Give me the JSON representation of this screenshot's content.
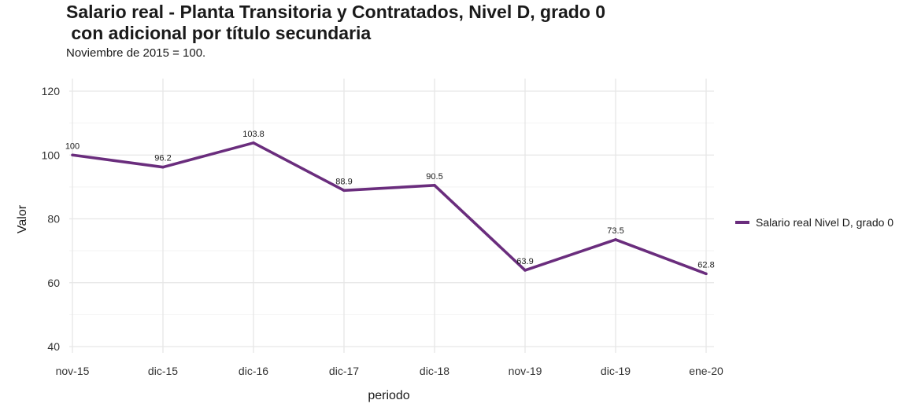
{
  "title": "Salario real - Planta Transitoria y Contratados, Nivel D, grado 0\n con adicional por título secundaria",
  "subtitle": "Noviembre de 2015 = 100.",
  "chart_data": {
    "type": "line",
    "categories": [
      "nov-15",
      "dic-15",
      "dic-16",
      "dic-17",
      "dic-18",
      "nov-19",
      "dic-19",
      "ene-20"
    ],
    "series": [
      {
        "name": "Salario real Nivel D, grado 0",
        "values": [
          100,
          96.2,
          103.8,
          88.9,
          90.5,
          63.9,
          73.5,
          62.8
        ],
        "labels": [
          "100",
          "96.2",
          "103.8",
          "88.9",
          "90.5",
          "63.9",
          "73.5",
          "62.8"
        ],
        "color": "#6a2d7d"
      }
    ],
    "xlabel": "periodo",
    "ylabel": "Valor",
    "ylim": [
      40,
      120
    ],
    "yticks": [
      40,
      60,
      80,
      100,
      120
    ],
    "grid": true,
    "legend": "right"
  }
}
